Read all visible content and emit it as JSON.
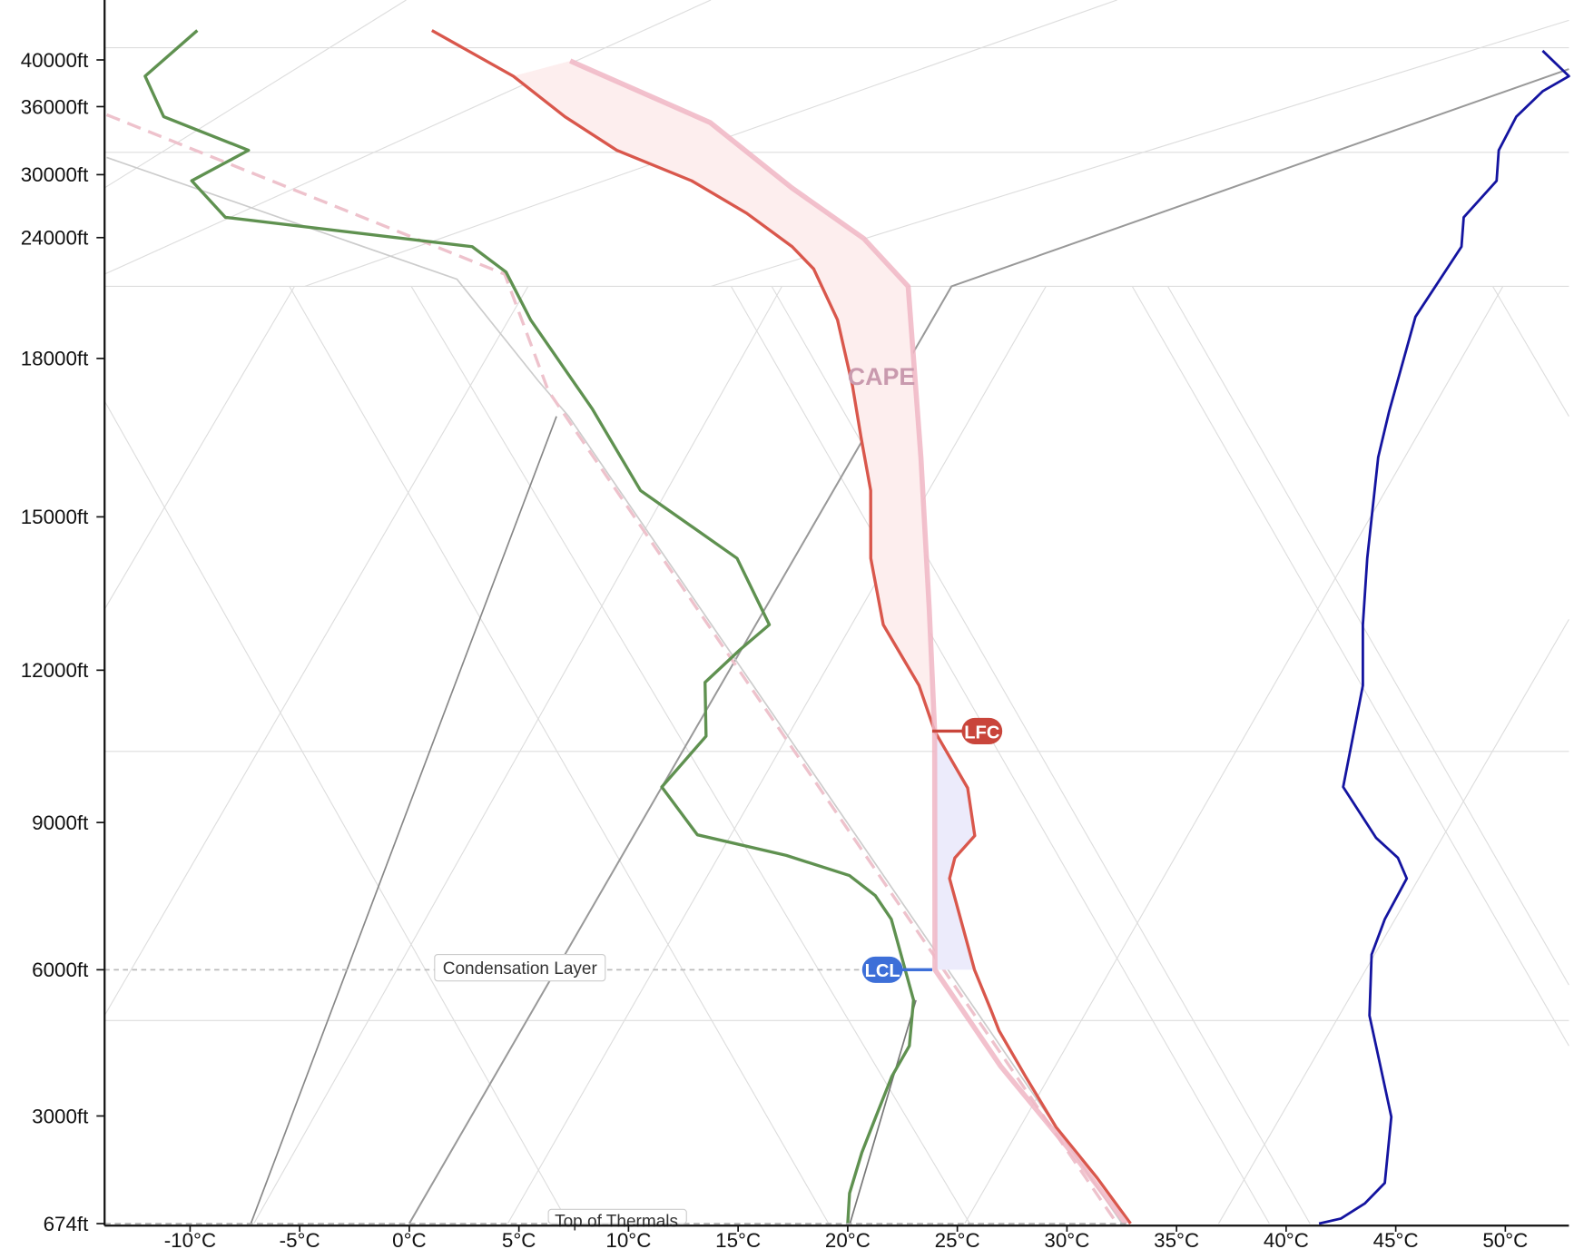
{
  "chart_data": {
    "type": "skewt",
    "xlim": [
      -13.9,
      52.9
    ],
    "xticks": [
      {
        "value": -10,
        "label": "-10°C"
      },
      {
        "value": -5,
        "label": "-5°C"
      },
      {
        "value": 0,
        "label": "0°C"
      },
      {
        "value": 5,
        "label": "5°C"
      },
      {
        "value": 10,
        "label": "10°C"
      },
      {
        "value": 15,
        "label": "15°C"
      },
      {
        "value": 20,
        "label": "20°C"
      },
      {
        "value": 25,
        "label": "25°C"
      },
      {
        "value": 30,
        "label": "30°C"
      },
      {
        "value": 35,
        "label": "35°C"
      },
      {
        "value": 40,
        "label": "40°C"
      },
      {
        "value": 45,
        "label": "45°C"
      },
      {
        "value": 50,
        "label": "50°C"
      }
    ],
    "ylim": [
      674,
      45000
    ],
    "yticks": [
      {
        "value": 674,
        "label": "674ft"
      },
      {
        "value": 3000,
        "label": "3000ft"
      },
      {
        "value": 6000,
        "label": "6000ft"
      },
      {
        "value": 9000,
        "label": "9000ft"
      },
      {
        "value": 12000,
        "label": "12000ft"
      },
      {
        "value": 15000,
        "label": "15000ft"
      },
      {
        "value": 18000,
        "label": "18000ft"
      },
      {
        "value": 24000,
        "label": "24000ft"
      },
      {
        "value": 30000,
        "label": "30000ft"
      },
      {
        "value": 36000,
        "label": "36000ft"
      },
      {
        "value": 40000,
        "label": "40000ft"
      }
    ],
    "series": [
      {
        "color": "#d9574c",
        "skewed": true,
        "altitudes": [
          674,
          1660,
          2760,
          3810,
          4750,
          5170,
          6000,
          7860,
          8280,
          8730,
          9680,
          10800,
          11700,
          12890,
          14190,
          15500,
          16520,
          17480,
          19920,
          22440,
          23550,
          26320,
          29420,
          32150,
          35110,
          38610,
          42520
        ],
        "values": [
          32.9,
          29.3,
          25.1,
          21.4,
          18.1,
          16.8,
          14.2,
          8.9,
          8.2,
          8.1,
          5.6,
          1.5,
          -1.3,
          -5.7,
          -9.3,
          -12.4,
          -15.3,
          -18.0,
          -21.7,
          -25.1,
          -27.1,
          -30.7,
          -34.7,
          -39.5,
          -43.4,
          -47.6,
          -53.4
        ]
      },
      {
        "color": "#5f9150",
        "skewed": true,
        "altitudes": [
          674,
          1330,
          2210,
          2990,
          3810,
          4440,
          5380,
          7030,
          7510,
          7920,
          8330,
          8750,
          9700,
          10700,
          11760,
          12400,
          12890,
          14190,
          15500,
          17040,
          19920,
          22290,
          23550,
          25940,
          29420,
          32150,
          35110,
          38610,
          42520
        ],
        "values": [
          20.0,
          18.7,
          17.4,
          16.4,
          15.3,
          14.7,
          12.8,
          8.1,
          6.3,
          4.2,
          0.4,
          -4.6,
          -8.4,
          -8.7,
          -11.2,
          -11.1,
          -10.9,
          -15.4,
          -22.9,
          -28.8,
          -35.7,
          -39.0,
          -41.7,
          -54.3,
          -57.5,
          -56.3,
          -61.7,
          -64.4,
          -64.1
        ]
      },
      {
        "color": "#f0b6c4",
        "skewed": true,
        "altitudes": [
          674,
          2100,
          4020,
          6000,
          10800,
          13190,
          16120,
          21580,
          23950,
          28740,
          34590,
          39910
        ],
        "values": [
          32.7,
          27.4,
          19.8,
          12.4,
          1.5,
          -4.3,
          -11.6,
          -20.0,
          -24.2,
          -29.8,
          -36.5,
          -45.7
        ]
      },
      {
        "color": "#1414a0",
        "skewed": false,
        "altitudes": [
          674,
          784,
          1113,
          1552,
          2980,
          4020,
          5060,
          6310,
          7030,
          7860,
          8280,
          8690,
          9700,
          11700,
          12890,
          14190,
          16130,
          17000,
          20070,
          23550,
          25940,
          29420,
          32150,
          35110,
          37310,
          38610,
          40780
        ],
        "values": [
          41.5,
          42.5,
          43.6,
          44.5,
          44.8,
          44.3,
          43.8,
          43.9,
          44.5,
          45.5,
          45.1,
          44.1,
          42.6,
          43.5,
          43.5,
          43.7,
          44.2,
          44.7,
          45.9,
          48.0,
          48.1,
          49.6,
          49.7,
          50.5,
          51.7,
          52.9,
          51.7
        ]
      }
    ],
    "annotations": {
      "cape": {
        "label": "CAPE"
      },
      "lfc": {
        "label": "LFC",
        "altitude": 10800
      },
      "lcl": {
        "label": "LCL",
        "altitude": 6000
      },
      "condensation_layer": {
        "label": "Condensation Layer",
        "altitude": 6000
      },
      "top_of_thermals": {
        "label": "Top of Thermals",
        "altitude": 674
      }
    }
  }
}
